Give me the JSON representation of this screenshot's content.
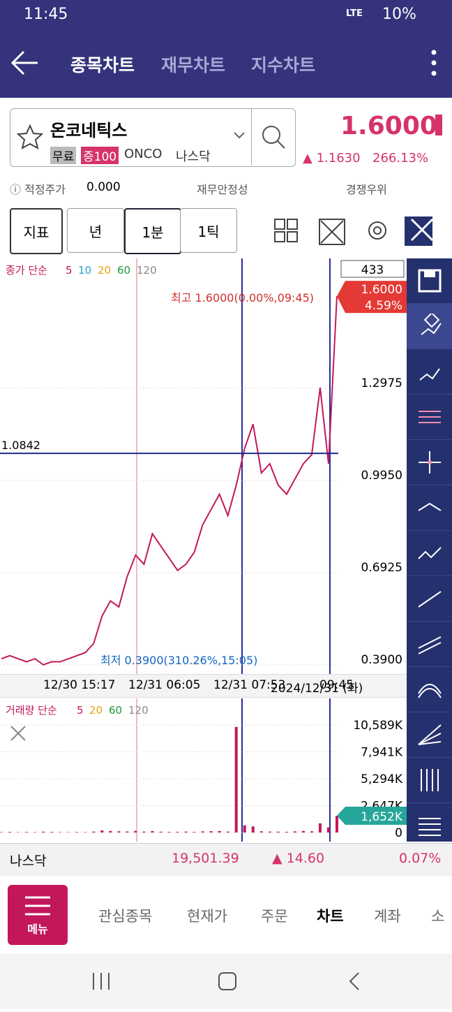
{
  "status": {
    "time": "11:45",
    "network": "LTE",
    "battery": "10%"
  },
  "header": {
    "tabs": [
      "종목차트",
      "재무차트",
      "지수차트"
    ]
  },
  "stock": {
    "name": "온코네틱스",
    "badges": [
      "무료",
      "증100"
    ],
    "ticker": "ONCO",
    "market": "나스닥",
    "price": "1.6000",
    "change": "▲ 1.1630",
    "change_pct": "266.13%"
  },
  "info": {
    "fair_label": "적정주가",
    "fair_value": "0.000",
    "items": [
      "재무안정성",
      "경쟁우위"
    ]
  },
  "toolbar": {
    "buttons": [
      "지표",
      "년",
      "1분",
      "1틱"
    ]
  },
  "price_chart": {
    "type": "line",
    "legend_title": "종가 단순",
    "legend_periods": [
      5,
      10,
      20,
      60,
      120
    ],
    "legend_colors": [
      "#c2185b",
      "#22a6c9",
      "#e8a317",
      "#1a9a3a",
      "#888888"
    ],
    "count": "433",
    "color": "#c2185b",
    "values": [
      0.41,
      0.42,
      0.41,
      0.4,
      0.41,
      0.39,
      0.4,
      0.4,
      0.41,
      0.42,
      0.43,
      0.46,
      0.55,
      0.6,
      0.58,
      0.68,
      0.75,
      0.72,
      0.82,
      0.78,
      0.74,
      0.7,
      0.72,
      0.76,
      0.85,
      0.9,
      0.95,
      0.88,
      0.98,
      1.1,
      1.18,
      1.02,
      1.05,
      0.98,
      0.95,
      1.0,
      1.05,
      1.08,
      1.3,
      1.05,
      1.6
    ],
    "ylim": [
      0.36,
      1.724
    ],
    "yticks": [
      1.2975,
      {
        "value": 0.995,
        "label": "0.9950"
      },
      0.6925,
      {
        "value": 0.39,
        "label": "0.3900"
      }
    ],
    "high_tag": {
      "value": 1.6,
      "label": "1.6000"
    },
    "high_pct": "4.59%",
    "hline": 1.0842,
    "annotation_high": "최고 1.6000(0.00%,09:45)",
    "annotation_low": "최저 0.3900(310.26%,15:05)",
    "x_labels": [
      "12/30 15:17",
      "12/31 06:05",
      "12/31 07:53",
      "2024/12/31 (화)",
      "09:45"
    ]
  },
  "volume_chart": {
    "type": "bar",
    "legend_title": "거래량 단순",
    "legend_periods": [
      5,
      20,
      60,
      120
    ],
    "legend_colors": [
      "#c2185b",
      "#e8a317",
      "#1a9a3a",
      "#888888"
    ],
    "color": "#c2185b",
    "values": [
      40,
      60,
      30,
      50,
      40,
      80,
      60,
      40,
      30,
      50,
      40,
      90,
      200,
      150,
      120,
      100,
      160,
      90,
      140,
      80,
      60,
      70,
      90,
      60,
      110,
      130,
      150,
      90,
      10400,
      700,
      600,
      120,
      90,
      80,
      70,
      110,
      150,
      120,
      900,
      500,
      1652
    ],
    "ylim": [
      0,
      13200
    ],
    "yticks": [
      {
        "value": 10589,
        "label": "10,589K"
      },
      {
        "value": 7941,
        "label": "7,941K"
      },
      {
        "value": 5294,
        "label": "5,294K"
      },
      {
        "value": 2647,
        "label": "2,647K"
      },
      0
    ],
    "current_tag": {
      "value": 1652,
      "label": "1,652K"
    }
  },
  "index_bar": {
    "name": "나스닥",
    "value": "19,501.39",
    "change": "▲ 14.60",
    "pct": "0.07%"
  },
  "bottom_nav": {
    "menu": "메뉴",
    "tabs": [
      "관심종목",
      "현재가",
      "주문",
      "차트",
      "계좌",
      "소"
    ]
  }
}
